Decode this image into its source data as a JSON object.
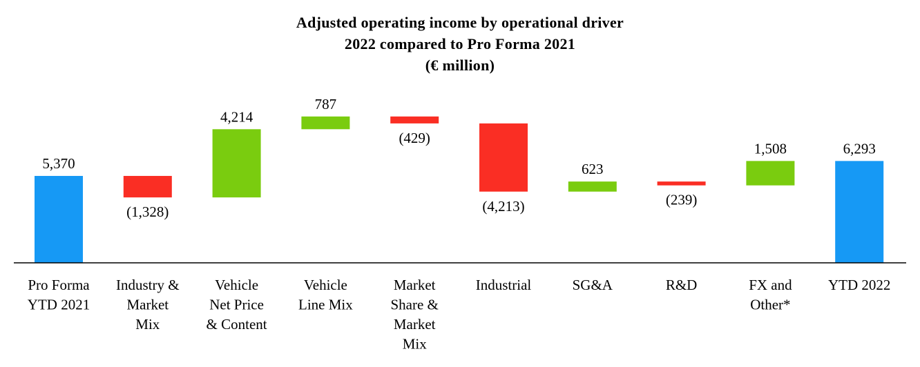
{
  "chart_data": {
    "type": "bar",
    "subtype": "waterfall",
    "title_lines": [
      "Adjusted operating income by operational driver",
      "2022 compared to Pro Forma 2021",
      "(€ million)"
    ],
    "categories": [
      [
        "Pro Forma",
        "YTD 2021"
      ],
      [
        "Industry &",
        "Market",
        "Mix"
      ],
      [
        "Vehicle",
        "Net Price",
        "& Content"
      ],
      [
        "Vehicle",
        "Line Mix"
      ],
      [
        "Market",
        "Share &",
        "Market",
        "Mix"
      ],
      [
        "Industrial"
      ],
      [
        "SG&A"
      ],
      [
        "R&D"
      ],
      [
        "FX and",
        "Other*"
      ],
      [
        "YTD 2022"
      ]
    ],
    "values": [
      5370,
      -1328,
      4214,
      787,
      -429,
      -4213,
      623,
      -239,
      1508,
      6293
    ],
    "bar_kinds": [
      "total",
      "delta",
      "delta",
      "delta",
      "delta",
      "delta",
      "delta",
      "delta",
      "delta",
      "total"
    ],
    "value_labels": [
      "5,370",
      "(1,328)",
      "4,214",
      "787",
      "(429)",
      "(4,213)",
      "623",
      "(239)",
      "1,508",
      "6,293"
    ],
    "colors": {
      "total": "#1699f5",
      "increase": "#7acc0f",
      "decrease": "#fa2e24",
      "axis": "#000000"
    },
    "ylim": [
      0,
      10000
    ],
    "grid": false,
    "legend": "none"
  }
}
